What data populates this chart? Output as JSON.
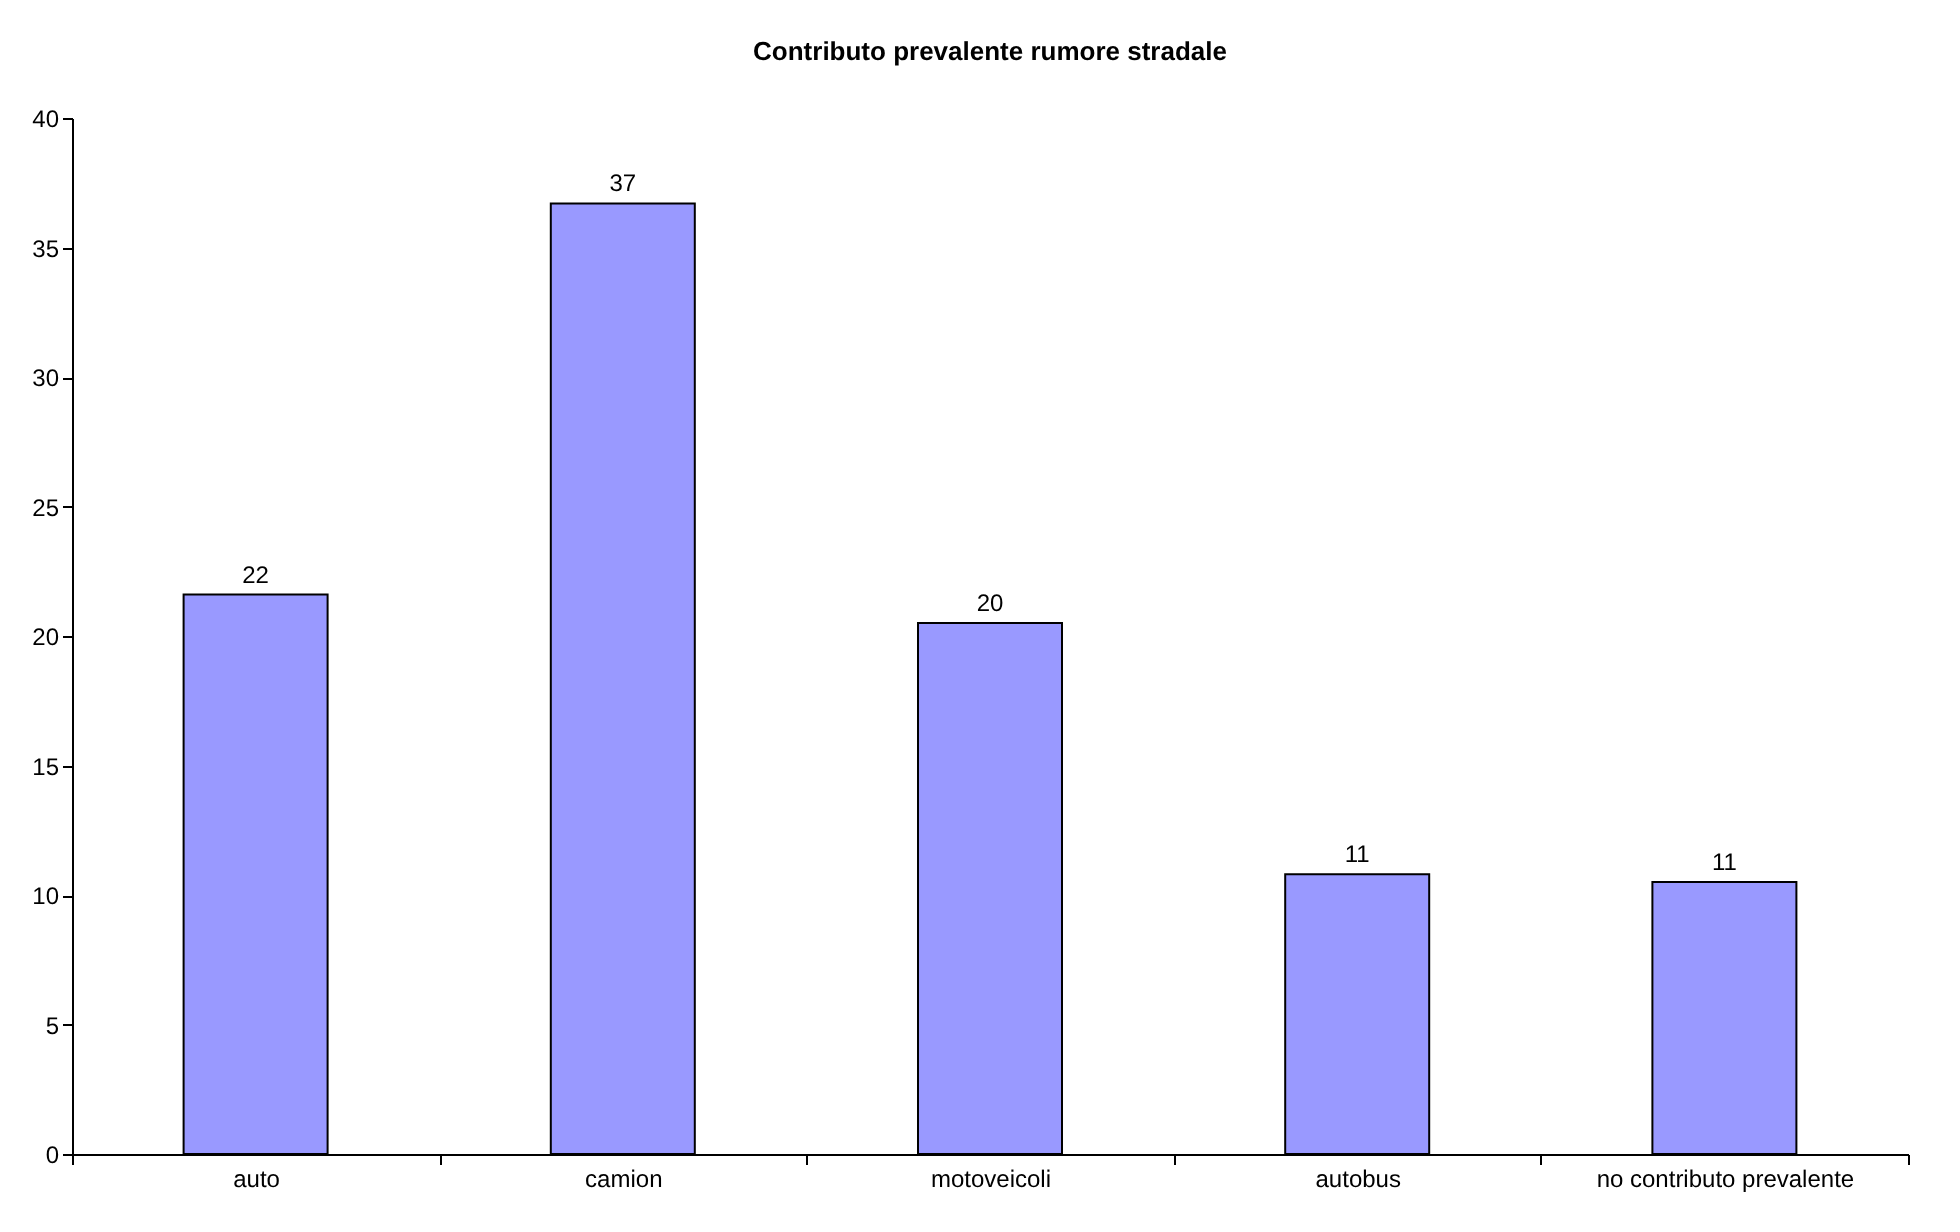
{
  "chart_data": {
    "type": "bar",
    "title": "Contributo prevalente rumore stradale",
    "categories": [
      "auto",
      "camion",
      "motoveicoli",
      "autobus",
      "no contributo prevalente"
    ],
    "values": [
      21.6,
      36.7,
      20.5,
      10.8,
      10.5
    ],
    "value_labels": [
      "22",
      "37",
      "20",
      "11",
      "11"
    ],
    "color": "#9999ff",
    "ylim": [
      0,
      40
    ],
    "yticks": [
      0,
      5,
      10,
      15,
      20,
      25,
      30,
      35,
      40
    ],
    "grid": false
  }
}
